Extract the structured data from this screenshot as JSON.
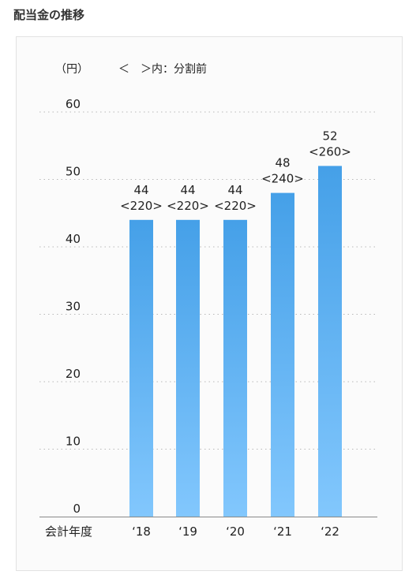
{
  "page": {
    "title": "配当金の推移"
  },
  "chart_data": {
    "type": "bar",
    "unit_label": "（円）",
    "note": "＜　＞内：分割前",
    "xlabel": "会計年度",
    "categories": [
      "‘18",
      "‘19",
      "‘20",
      "‘21",
      "‘22"
    ],
    "values": [
      44,
      44,
      44,
      48,
      52
    ],
    "labels_top": [
      "44",
      "44",
      "44",
      "48",
      "52"
    ],
    "labels_bottom": [
      "<220>",
      "<220>",
      "<220>",
      "<240>",
      "<260>"
    ],
    "ylim": [
      0,
      60
    ],
    "yticks": [
      0,
      10,
      20,
      30,
      40,
      50,
      60
    ],
    "grid": true,
    "colors": {
      "bar_top": "#45a0e8",
      "bar_bottom": "#82c7fd",
      "grid": "#b8b8b8",
      "axis": "#888888"
    }
  }
}
